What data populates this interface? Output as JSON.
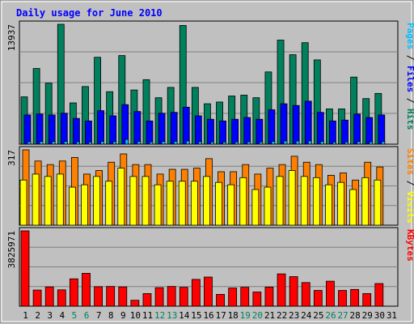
{
  "chart_data": {
    "type": "bar",
    "title": "Daily usage for June 2010",
    "categories": [
      "1",
      "2",
      "3",
      "4",
      "5",
      "6",
      "7",
      "8",
      "9",
      "10",
      "11",
      "12",
      "13",
      "14",
      "15",
      "16",
      "17",
      "18",
      "19",
      "20",
      "21",
      "22",
      "23",
      "24",
      "25",
      "26",
      "27",
      "28",
      "29",
      "30",
      "31"
    ],
    "weekend_days": [
      "5",
      "6",
      "12",
      "13",
      "19",
      "20",
      "26",
      "27"
    ],
    "panels": [
      {
        "name": "hits-files-pages",
        "ymax_label": "13937",
        "ymax": 13937,
        "axis_legend": [
          "Pages",
          "/",
          "Files",
          "/",
          "Hits"
        ],
        "series": [
          {
            "name": "Hits",
            "color": "#00805c",
            "values": [
              5500,
              8800,
              7100,
              13937,
              4800,
              6700,
              10100,
              6100,
              10300,
              6300,
              7500,
              5400,
              6600,
              13800,
              6600,
              4700,
              4900,
              5600,
              5700,
              5400,
              8400,
              12100,
              10400,
              11800,
              9800,
              4100,
              4100,
              7800,
              5300,
              5900,
              0
            ]
          },
          {
            "name": "Files",
            "color": "#0000ff",
            "values": [
              3400,
              3500,
              3400,
              3600,
              3000,
              2700,
              3900,
              3300,
              4600,
              3800,
              2700,
              3600,
              3700,
              4300,
              3300,
              2900,
              2700,
              2900,
              3100,
              2900,
              4000,
              4700,
              4500,
              5000,
              3700,
              2700,
              2800,
              3500,
              3100,
              3400,
              0
            ]
          },
          {
            "name": "Pages",
            "color": "#00c0ff",
            "values": [
              300,
              320,
              310,
              320,
              280,
              260,
              330,
              300,
              560,
              330,
              270,
              320,
              330,
              380,
              300,
              270,
              260,
              270,
              290,
              270,
              330,
              380,
              370,
              390,
              330,
              250,
              260,
              310,
              280,
              300,
              0
            ]
          }
        ]
      },
      {
        "name": "visits-sites",
        "ymax_label": "317",
        "ymax": 317,
        "axis_legend": [
          "Sites",
          "/",
          "Visits"
        ],
        "series": [
          {
            "name": "Visits",
            "color": "#ff8000",
            "values": [
              317,
              270,
              255,
              270,
              285,
              215,
              230,
              265,
              300,
              255,
              255,
              215,
              235,
              235,
              240,
              280,
              225,
              225,
              255,
              215,
              240,
              255,
              290,
              265,
              255,
              210,
              220,
              190,
              265,
              245,
              0
            ]
          },
          {
            "name": "Sites",
            "color": "#ffff00",
            "values": [
              190,
              215,
              205,
              215,
              160,
              170,
              205,
              185,
              240,
              205,
              205,
              170,
              185,
              185,
              185,
              205,
              180,
              170,
              200,
              150,
              160,
              205,
              230,
              205,
              200,
              170,
              180,
              150,
              200,
              190,
              0
            ]
          }
        ]
      },
      {
        "name": "kbytes",
        "ymax_label": "3825971",
        "ymax": 3825971,
        "axis_legend": [
          "KBytes"
        ],
        "series": [
          {
            "name": "KBytes",
            "color": "#ff0000",
            "values": [
              3825971,
              820000,
              980000,
              830000,
              1390000,
              1670000,
              990000,
              1000000,
              980000,
              300000,
              640000,
              940000,
              1000000,
              960000,
              1360000,
              1480000,
              600000,
              920000,
              960000,
              720000,
              970000,
              1640000,
              1500000,
              1200000,
              800000,
              1270000,
              800000,
              850000,
              640000,
              1150000,
              0
            ]
          }
        ]
      }
    ],
    "xlabel": "",
    "grid": true,
    "legend": "vertical text right of each panel"
  }
}
